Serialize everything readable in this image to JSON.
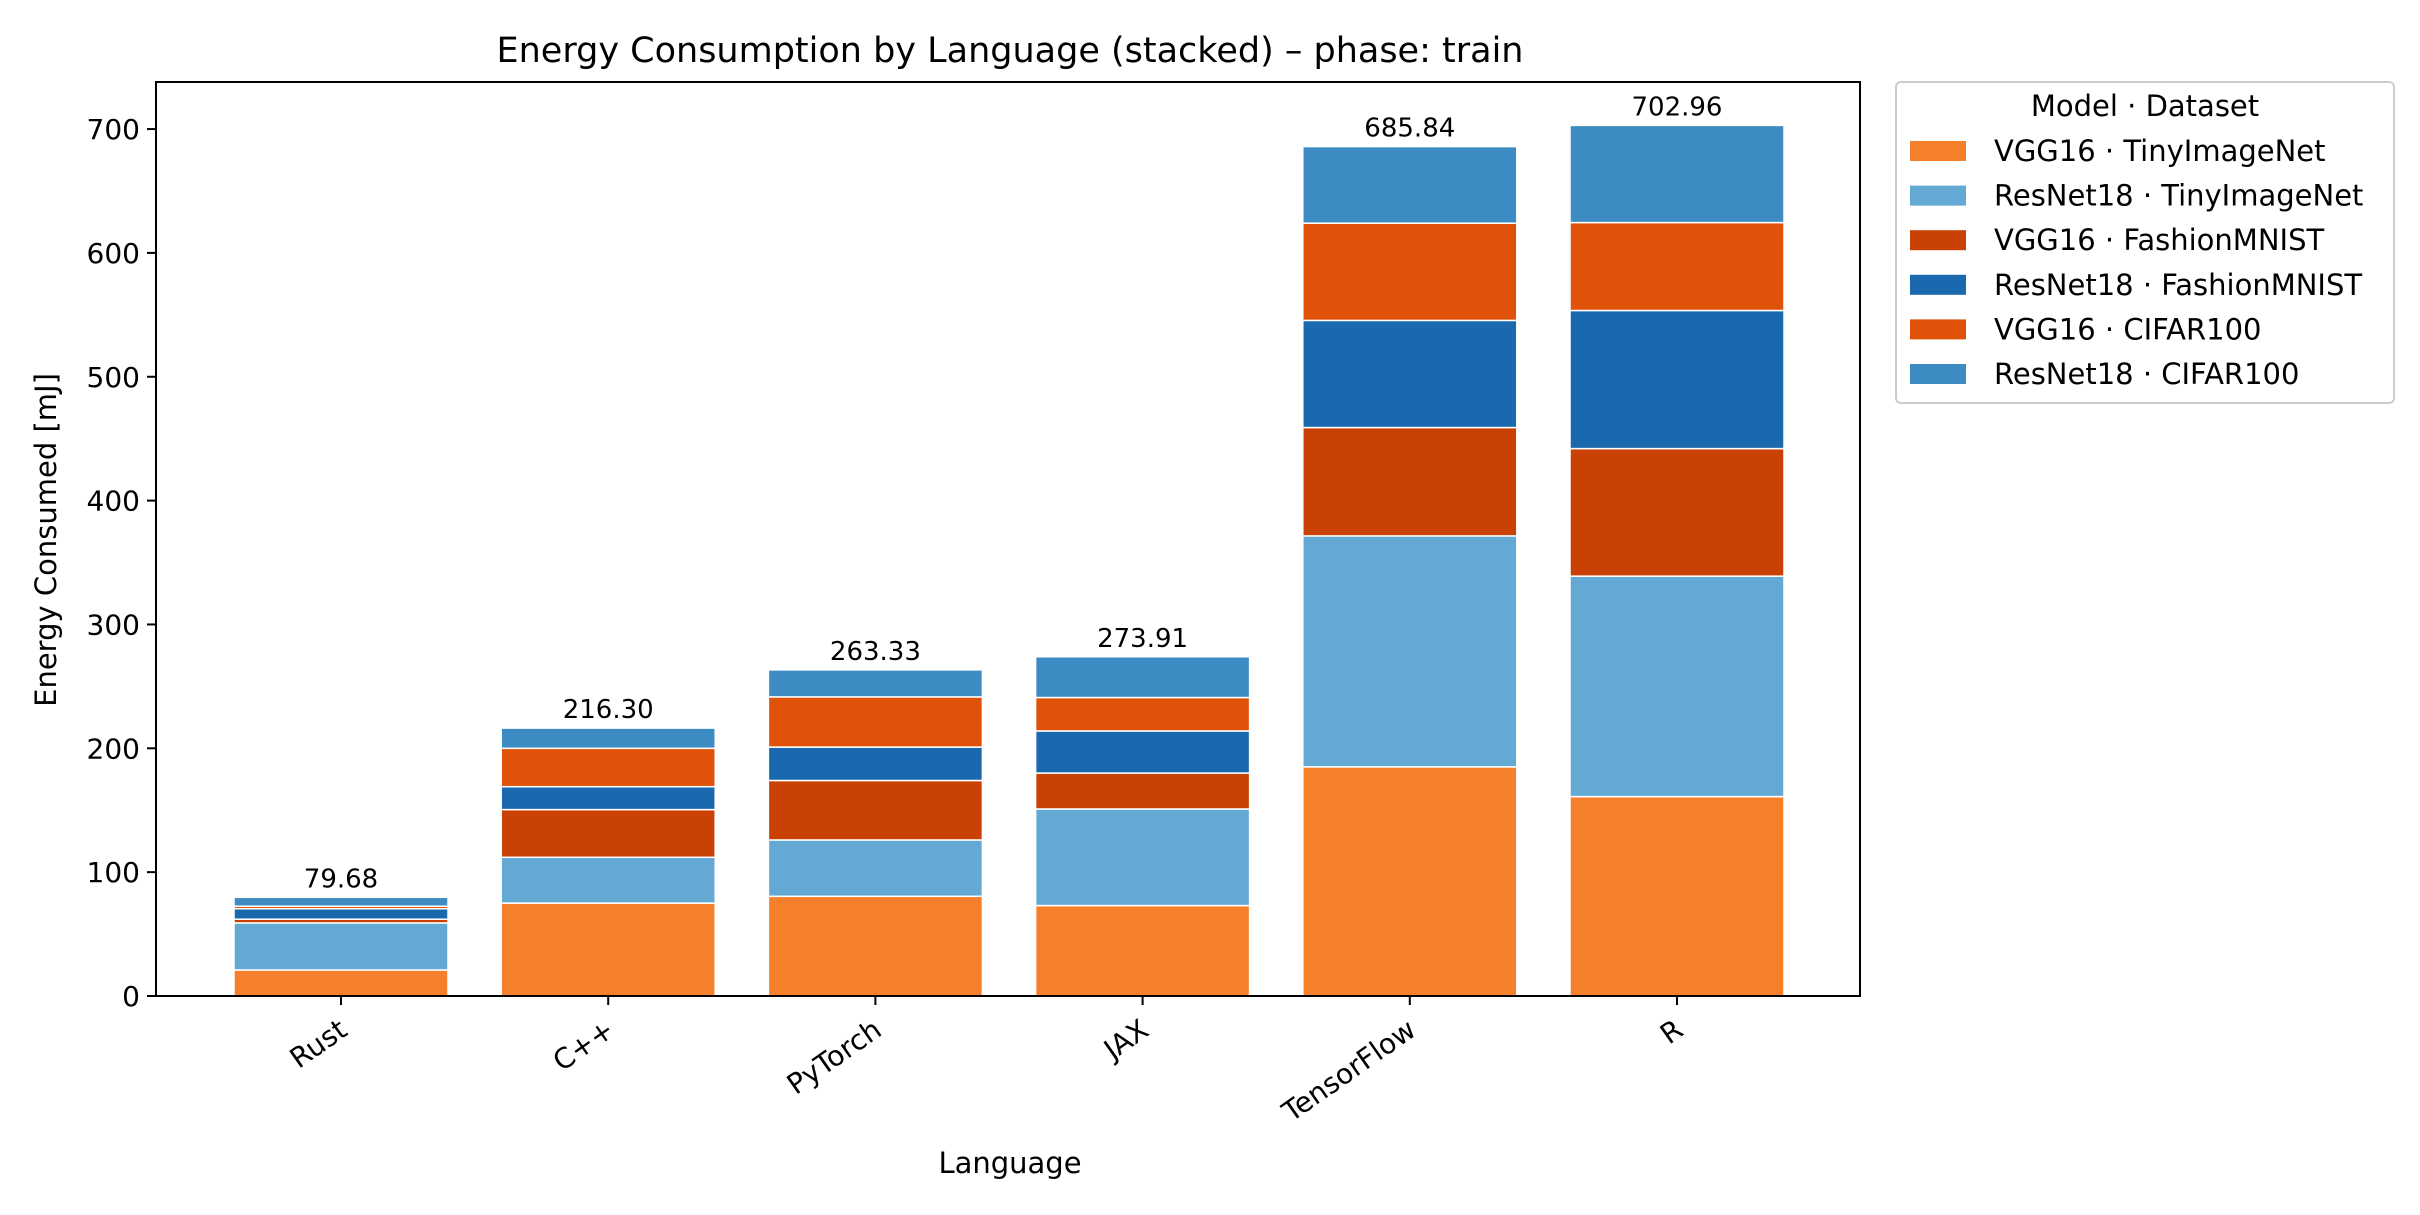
{
  "chart_data": {
    "type": "bar",
    "stacked": true,
    "title": "Energy Consumption by Language (stacked) – phase: train",
    "xlabel": "Language",
    "ylabel": "Energy Consumed [mJ]",
    "ylim": [
      0,
      738
    ],
    "yticks": [
      0,
      100,
      200,
      300,
      400,
      500,
      600,
      700
    ],
    "categories": [
      "Rust",
      "C++",
      "PyTorch",
      "JAX",
      "TensorFlow",
      "R"
    ],
    "series": [
      {
        "name": "VGG16 · TinyImageNet",
        "color": "#f57f2a",
        "values": [
          21.0,
          75.0,
          80.5,
          73.0,
          185.0,
          161.0
        ]
      },
      {
        "name": "ResNet18 · TinyImageNet",
        "color": "#64a9d4",
        "values": [
          38.0,
          37.0,
          45.5,
          78.0,
          186.5,
          178.0
        ]
      },
      {
        "name": "VGG16 · FashionMNIST",
        "color": "#c94104",
        "values": [
          3.0,
          38.5,
          48.0,
          29.0,
          87.5,
          103.0
        ]
      },
      {
        "name": "ResNet18 · FashionMNIST",
        "color": "#1a68ad",
        "values": [
          8.5,
          18.5,
          27.0,
          34.0,
          86.5,
          111.5
        ]
      },
      {
        "name": "VGG16 · CIFAR100",
        "color": "#e0520a",
        "values": [
          2.0,
          31.0,
          40.5,
          27.0,
          78.5,
          71.0
        ]
      },
      {
        "name": "ResNet18 · CIFAR100",
        "color": "#3d8bc3",
        "values": [
          7.18,
          16.3,
          21.83,
          32.91,
          61.84,
          78.46
        ]
      }
    ],
    "totals": [
      "79.68",
      "216.30",
      "263.33",
      "273.91",
      "685.84",
      "702.96"
    ],
    "legend": {
      "title": "Model · Dataset",
      "placement": "outside-top-right"
    },
    "grid": false
  }
}
